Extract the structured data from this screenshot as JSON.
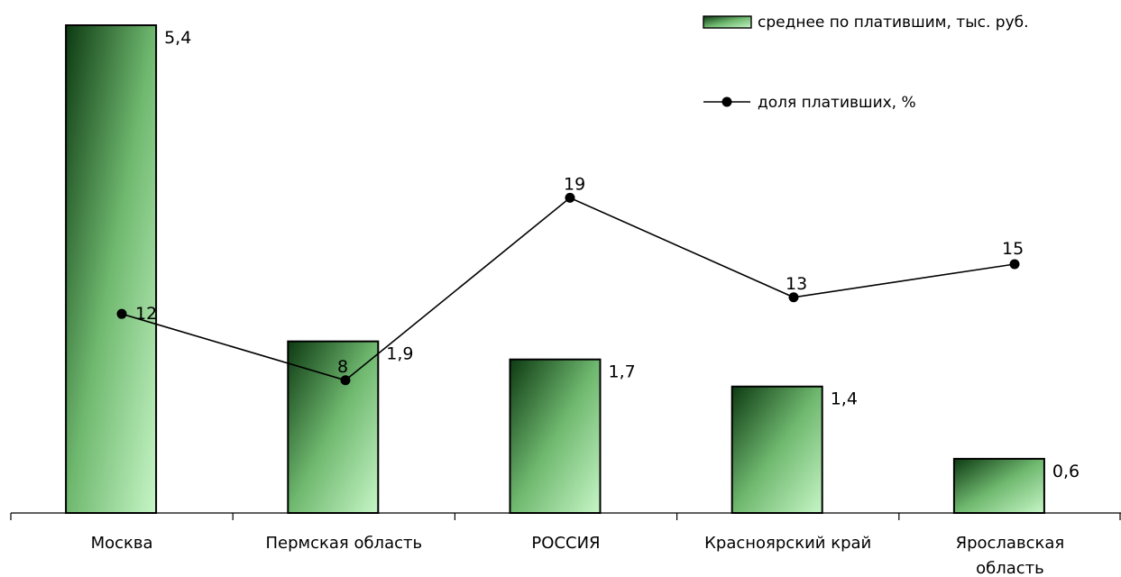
{
  "chart_data": {
    "type": "bar",
    "categories": [
      [
        "Москва"
      ],
      [
        "Пермская область"
      ],
      [
        "РОССИЯ"
      ],
      [
        "Красноярский край"
      ],
      [
        "Ярославская",
        "область"
      ]
    ],
    "series": [
      {
        "name": "среднее по платившим, тыс. руб.",
        "type": "bar",
        "values": [
          5.4,
          1.9,
          1.7,
          1.4,
          0.6
        ],
        "labels": [
          "5,4",
          "1,9",
          "1,7",
          "1,4",
          "0,6"
        ]
      },
      {
        "name": "доля платиших, %",
        "type": "line",
        "values": [
          12,
          8,
          19,
          13,
          15
        ],
        "labels": [
          "12",
          "8",
          "19",
          "13",
          "15"
        ]
      }
    ],
    "y_bar_range": [
      0,
      5.4
    ],
    "y_line_range": [
      0,
      29.4
    ],
    "grid": false,
    "legend_position": "top-right",
    "colors": {
      "bar_dark": "#0d3a12",
      "bar_light": "#c6f5c6",
      "line": "#000000",
      "axis": "#000000"
    }
  }
}
